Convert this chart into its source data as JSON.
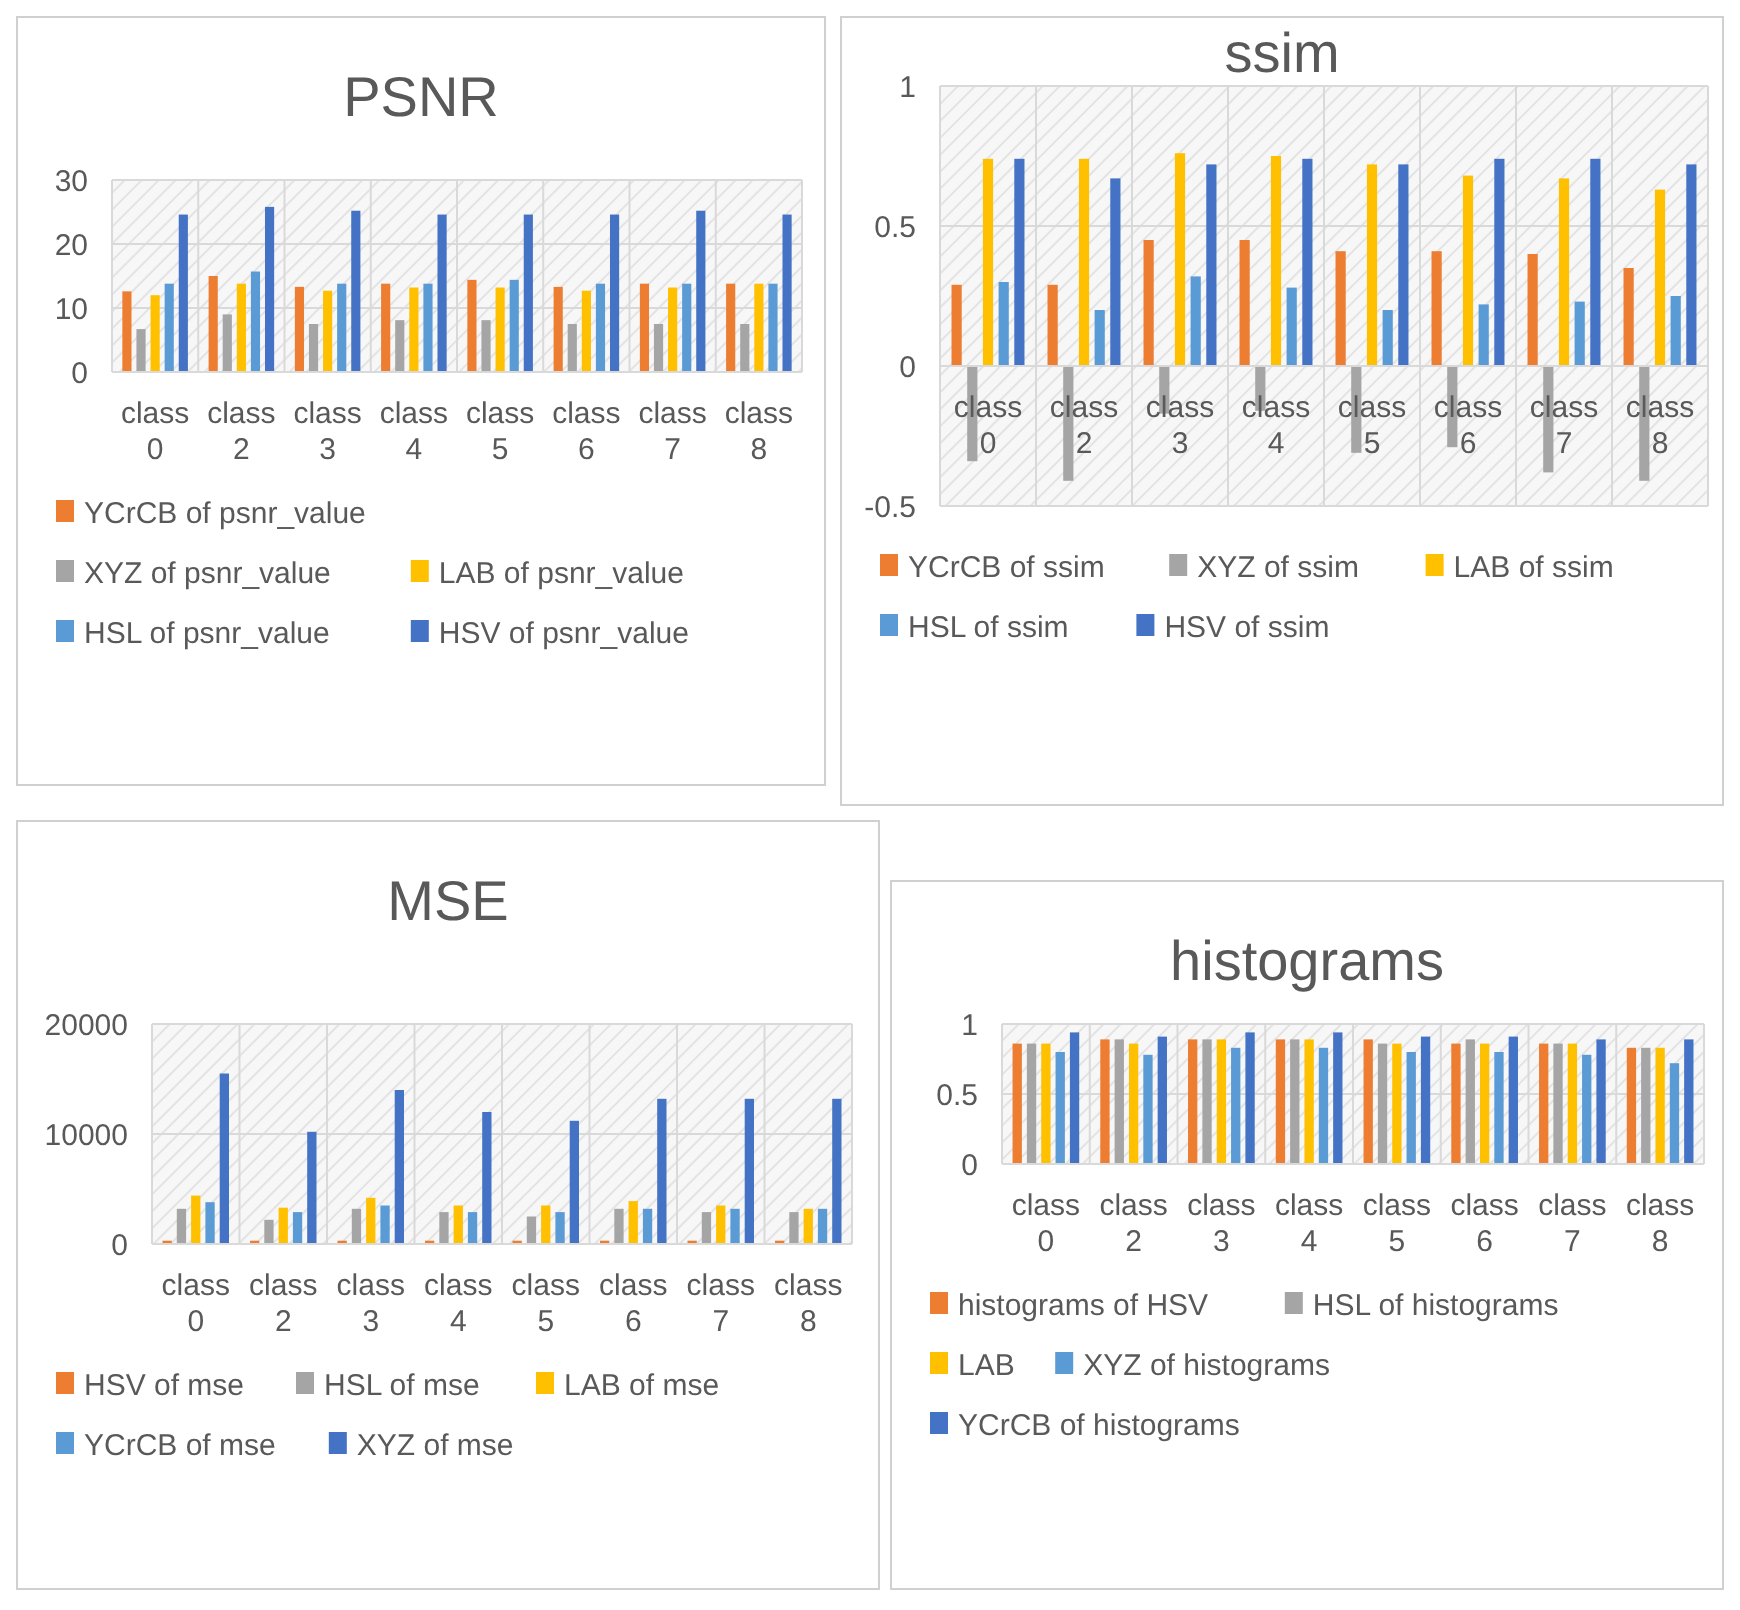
{
  "chart_data": [
    {
      "type": "bar",
      "title": "PSNR",
      "categories": [
        "class 0",
        "class 2",
        "class 3",
        "class 4",
        "class 5",
        "class 6",
        "class 7",
        "class 8"
      ],
      "ylim": [
        0,
        30
      ],
      "yticks": [
        0,
        10,
        20,
        30
      ],
      "grid": true,
      "legend": "bottom",
      "series": [
        {
          "name": "YCrCB of psnr_value",
          "color": "#ed7d31",
          "values": [
            12.6,
            15,
            13.3,
            13.8,
            14.4,
            13.3,
            13.8,
            13.8
          ]
        },
        {
          "name": "XYZ of psnr_value",
          "color": "#a5a5a5",
          "values": [
            6.7,
            9,
            7.5,
            8.1,
            8.1,
            7.5,
            7.5,
            7.5
          ]
        },
        {
          "name": "LAB of psnr_value",
          "color": "#ffc000",
          "values": [
            12,
            13.8,
            12.7,
            13.2,
            13.2,
            12.7,
            13.2,
            13.8
          ]
        },
        {
          "name": "HSL of psnr_value",
          "color": "#5b9bd5",
          "values": [
            13.8,
            15.7,
            13.8,
            13.8,
            14.4,
            13.8,
            13.8,
            13.8
          ]
        },
        {
          "name": "HSV of psnr_value",
          "color": "#4472c4",
          "values": [
            24.6,
            25.8,
            25.2,
            24.6,
            24.6,
            24.6,
            25.2,
            24.6
          ]
        }
      ]
    },
    {
      "type": "bar",
      "title": "ssim",
      "categories": [
        "class 0",
        "class 2",
        "class 3",
        "class 4",
        "class 5",
        "class 6",
        "class 7",
        "class 8"
      ],
      "ylim": [
        -0.5,
        1
      ],
      "yticks": [
        -0.5,
        0,
        0.5,
        1
      ],
      "grid": true,
      "legend": "bottom",
      "series": [
        {
          "name": "YCrCB of ssim",
          "color": "#ed7d31",
          "values": [
            0.29,
            0.29,
            0.45,
            0.45,
            0.41,
            0.41,
            0.4,
            0.35
          ]
        },
        {
          "name": "XYZ of ssim",
          "color": "#a5a5a5",
          "values": [
            -0.34,
            -0.41,
            -0.17,
            -0.16,
            -0.31,
            -0.29,
            -0.38,
            -0.41
          ]
        },
        {
          "name": "LAB of ssim",
          "color": "#ffc000",
          "values": [
            0.74,
            0.74,
            0.76,
            0.75,
            0.72,
            0.68,
            0.67,
            0.63
          ]
        },
        {
          "name": "HSL of ssim",
          "color": "#5b9bd5",
          "values": [
            0.3,
            0.2,
            0.32,
            0.28,
            0.2,
            0.22,
            0.23,
            0.25
          ]
        },
        {
          "name": "HSV of ssim",
          "color": "#4472c4",
          "values": [
            0.74,
            0.67,
            0.72,
            0.74,
            0.72,
            0.74,
            0.74,
            0.72
          ]
        }
      ]
    },
    {
      "type": "bar",
      "title": "MSE",
      "categories": [
        "class 0",
        "class 2",
        "class 3",
        "class 4",
        "class 5",
        "class 6",
        "class 7",
        "class 8"
      ],
      "ylim": [
        0,
        20000
      ],
      "yticks": [
        0,
        10000,
        20000
      ],
      "grid": true,
      "legend": "bottom",
      "series": [
        {
          "name": "HSV of mse",
          "color": "#ed7d31",
          "values": [
            300,
            300,
            300,
            300,
            300,
            300,
            300,
            300
          ]
        },
        {
          "name": "HSL of mse",
          "color": "#a5a5a5",
          "values": [
            3200,
            2200,
            3200,
            2900,
            2500,
            3200,
            2900,
            2900
          ]
        },
        {
          "name": "LAB of mse",
          "color": "#ffc000",
          "values": [
            4400,
            3300,
            4200,
            3500,
            3500,
            3900,
            3500,
            3200
          ]
        },
        {
          "name": "YCrCB of mse",
          "color": "#5b9bd5",
          "values": [
            3800,
            2900,
            3500,
            2900,
            2900,
            3200,
            3200,
            3200
          ]
        },
        {
          "name": "XYZ of mse",
          "color": "#4472c4",
          "values": [
            15500,
            10200,
            14000,
            12000,
            11200,
            13200,
            13200,
            13200
          ]
        }
      ]
    },
    {
      "type": "bar",
      "title": "histograms",
      "categories": [
        "class 0",
        "class 2",
        "class 3",
        "class 4",
        "class 5",
        "class 6",
        "class 7",
        "class 8"
      ],
      "ylim": [
        0,
        1
      ],
      "yticks": [
        0,
        0.5,
        1
      ],
      "grid": true,
      "legend": "bottom",
      "series": [
        {
          "name": "histograms of HSV",
          "color": "#ed7d31",
          "values": [
            0.86,
            0.89,
            0.89,
            0.89,
            0.89,
            0.86,
            0.86,
            0.83
          ]
        },
        {
          "name": "HSL of histograms",
          "color": "#a5a5a5",
          "values": [
            0.86,
            0.89,
            0.89,
            0.89,
            0.86,
            0.89,
            0.86,
            0.83
          ]
        },
        {
          "name": "LAB",
          "color": "#ffc000",
          "values": [
            0.86,
            0.86,
            0.89,
            0.89,
            0.86,
            0.86,
            0.86,
            0.83
          ]
        },
        {
          "name": "XYZ of histograms",
          "color": "#5b9bd5",
          "values": [
            0.8,
            0.78,
            0.83,
            0.83,
            0.8,
            0.8,
            0.78,
            0.72
          ]
        },
        {
          "name": "YCrCB of histograms",
          "color": "#4472c4",
          "values": [
            0.94,
            0.91,
            0.94,
            0.94,
            0.91,
            0.91,
            0.89,
            0.89
          ]
        }
      ]
    }
  ]
}
